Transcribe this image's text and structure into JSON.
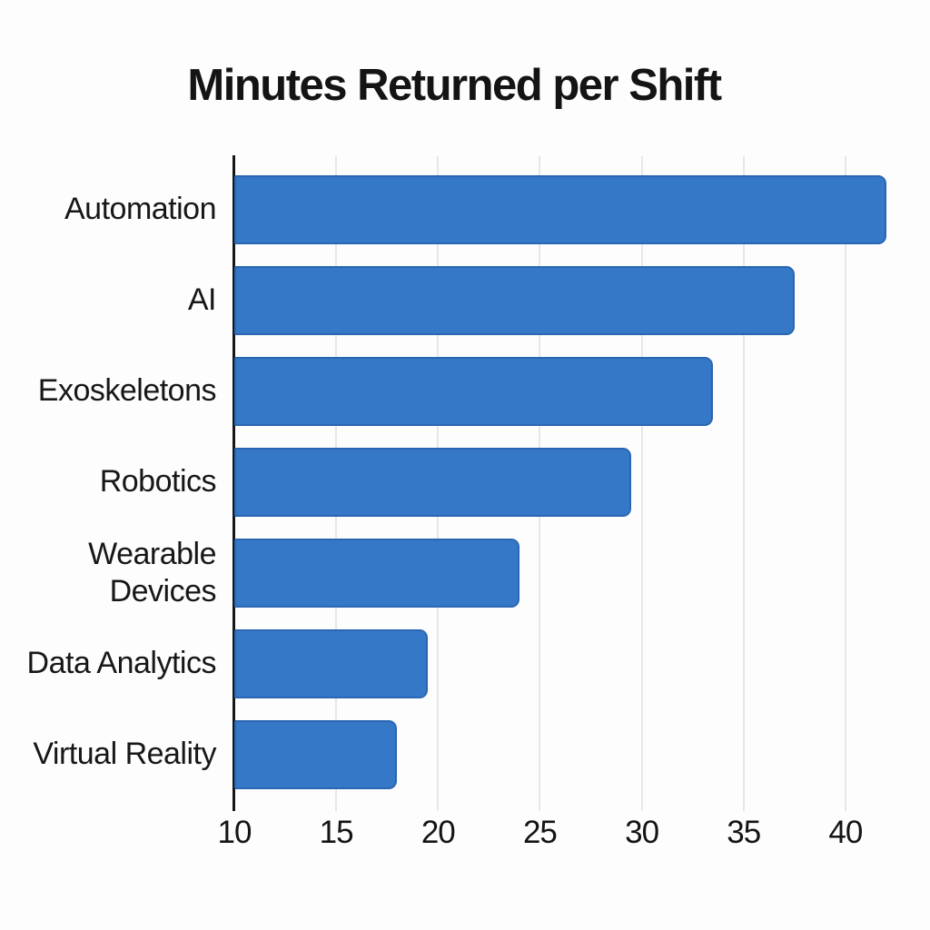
{
  "chart_data": {
    "type": "bar",
    "orientation": "horizontal",
    "title": "Minutes Returned per Shift",
    "categories": [
      "Automation",
      "AI",
      "Exoskeletons",
      "Robotics",
      "Wearable Devices",
      "Data Analytics",
      "Virtual Reality"
    ],
    "wrapped_labels": [
      "Automation",
      "AI",
      "Exoskeletons",
      "Robotics",
      "Wearable\nDevices",
      "Data Analytics",
      "Virtual Reality"
    ],
    "values": [
      42,
      37.5,
      33.5,
      29.5,
      24,
      19.5,
      18
    ],
    "unit": "minutes",
    "xlabel": "",
    "ylabel": "",
    "xticks": [
      10,
      15,
      20,
      25,
      30,
      35,
      40
    ],
    "xlim": [
      10,
      42.6
    ],
    "grid": true,
    "legend": false,
    "colors": {
      "bar_fill": "#3678c8",
      "bar_border": "#2a66b2",
      "gridline": "#e7e7e7",
      "axis_line": "#161616",
      "title_text": "#141414",
      "label_text": "#171717",
      "tick_text": "#141414",
      "background": "#fdfdfd"
    }
  }
}
